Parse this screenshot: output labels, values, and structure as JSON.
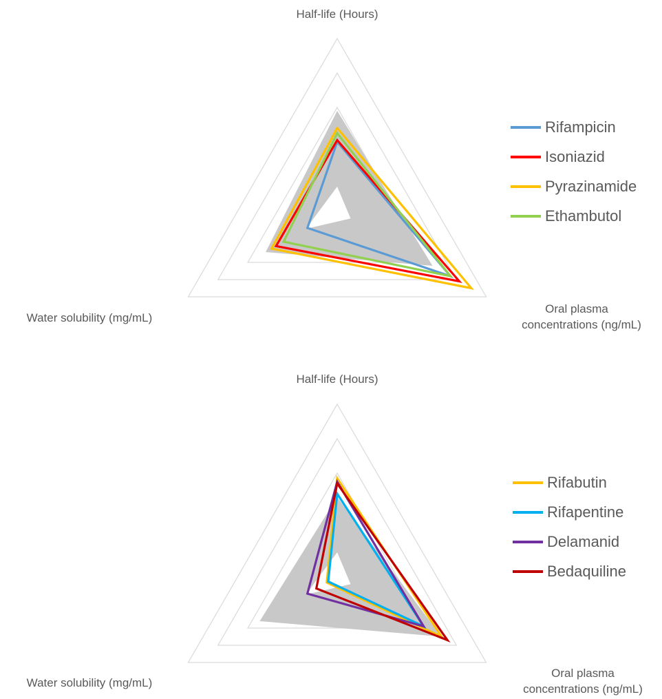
{
  "chart_data": [
    {
      "type": "radar",
      "axes": [
        "Half-life (Hours)",
        "Oral plasma concentrations (ng/mL)",
        "Water solubility (mg/mL)"
      ],
      "axis_labels": {
        "top": "Half-life (Hours)",
        "right_line1": "Oral plasma",
        "right_line2": "concentrations (ng/mL)",
        "left": "Water solubility (mg/mL)"
      },
      "rings": 5,
      "range": [
        0,
        5
      ],
      "shaded_region": {
        "outer": [
          2.9,
          3.2,
          2.4
        ],
        "inner": [
          0.7,
          0.45,
          1.05
        ]
      },
      "series": [
        {
          "name": "Rifampicin",
          "color": "#5b9bd5",
          "values": [
            2.0,
            3.8,
            1.0
          ]
        },
        {
          "name": "Isoniazid",
          "color": "#ff0000",
          "values": [
            2.05,
            4.1,
            2.05
          ]
        },
        {
          "name": "Pyrazinamide",
          "color": "#ffc000",
          "values": [
            2.4,
            4.5,
            2.2
          ]
        },
        {
          "name": "Ethambutol",
          "color": "#92d050",
          "values": [
            2.25,
            3.8,
            1.8
          ]
        }
      ],
      "legend": {
        "position": "right"
      }
    },
    {
      "type": "radar",
      "axes": [
        "Half-life (Hours)",
        "Oral plasma concentrations (ng/mL)",
        "Water solubility (mg/mL)"
      ],
      "axis_labels": {
        "top": "Half-life (Hours)",
        "right_line1": "Oral plasma",
        "right_line2": "concentrations (ng/mL)",
        "left": "Water solubility (mg/mL)"
      },
      "rings": 5,
      "range": [
        0,
        5
      ],
      "shaded_region": {
        "outer": [
          2.3,
          3.5,
          2.6
        ],
        "inner": [
          0.7,
          0.45,
          1.05
        ]
      },
      "series": [
        {
          "name": "Rifabutin",
          "color": "#ffc000",
          "values": [
            2.85,
            3.5,
            0.35
          ]
        },
        {
          "name": "Rifapentine",
          "color": "#00b0f0",
          "values": [
            2.4,
            2.9,
            0.3
          ]
        },
        {
          "name": "Delamanid",
          "color": "#7030a0",
          "values": [
            2.75,
            2.9,
            1.0
          ]
        },
        {
          "name": "Bedaquiline",
          "color": "#c00000",
          "values": [
            2.7,
            3.7,
            0.7
          ]
        }
      ],
      "legend": {
        "position": "right"
      }
    }
  ]
}
